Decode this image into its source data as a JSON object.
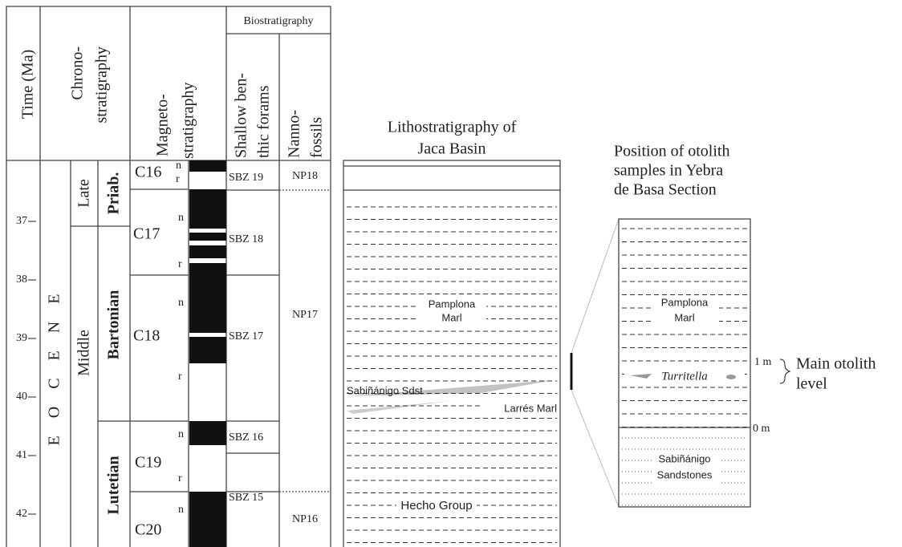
{
  "header": {
    "time": "Time (Ma)",
    "chrono": [
      "Chrono-",
      "stratigraphy"
    ],
    "magneto": [
      "Magneto-",
      "stratigraphy"
    ],
    "biostratigraphy": "Biostratigraphy",
    "forams": [
      "Shallow ben-",
      "thic forams"
    ],
    "nannofossils": [
      "Nanno-",
      "fossils"
    ]
  },
  "time_ticks": [
    37,
    38,
    39,
    40,
    41,
    42
  ],
  "chrono": {
    "epoch": "EOCENE",
    "subepochs": [
      "Late",
      "Middle"
    ],
    "stages": [
      "Priab.",
      "Bartonian",
      "Lutetian"
    ]
  },
  "magneto": [
    {
      "chron": "C16",
      "labels": [
        "n",
        "r"
      ]
    },
    {
      "chron": "C17",
      "labels": [
        "n",
        "r"
      ]
    },
    {
      "chron": "C18",
      "labels": [
        "n",
        "r"
      ]
    },
    {
      "chron": "C19",
      "labels": [
        "n",
        "r"
      ]
    },
    {
      "chron": "C20",
      "labels": [
        "n"
      ]
    }
  ],
  "biostratigraphy": {
    "forams": [
      "SBZ 19",
      "SBZ 18",
      "SBZ 17",
      "SBZ 16",
      "SBZ 15"
    ],
    "nannofossils": [
      "NP18",
      "NP17",
      "NP16"
    ]
  },
  "lithostratigraphy": {
    "title": [
      "Lithostratigraphy of",
      "Jaca Basin"
    ],
    "units": [
      [
        "Pamplona",
        "Marl"
      ],
      "Sabiñánigo Sdst",
      "Larrés Marl",
      "Hecho Group"
    ]
  },
  "section": {
    "title": [
      "Position of otolith",
      "samples in Yebra",
      "de Basa Section",
      ""
    ],
    "units": [
      [
        "Pamplona",
        "Marl"
      ],
      [
        "Sabiñánigo",
        "Sandstones"
      ]
    ],
    "fossil": "Turritella",
    "depths": [
      "1 m",
      "0 m"
    ],
    "level": [
      "Main otolith",
      "level"
    ]
  }
}
